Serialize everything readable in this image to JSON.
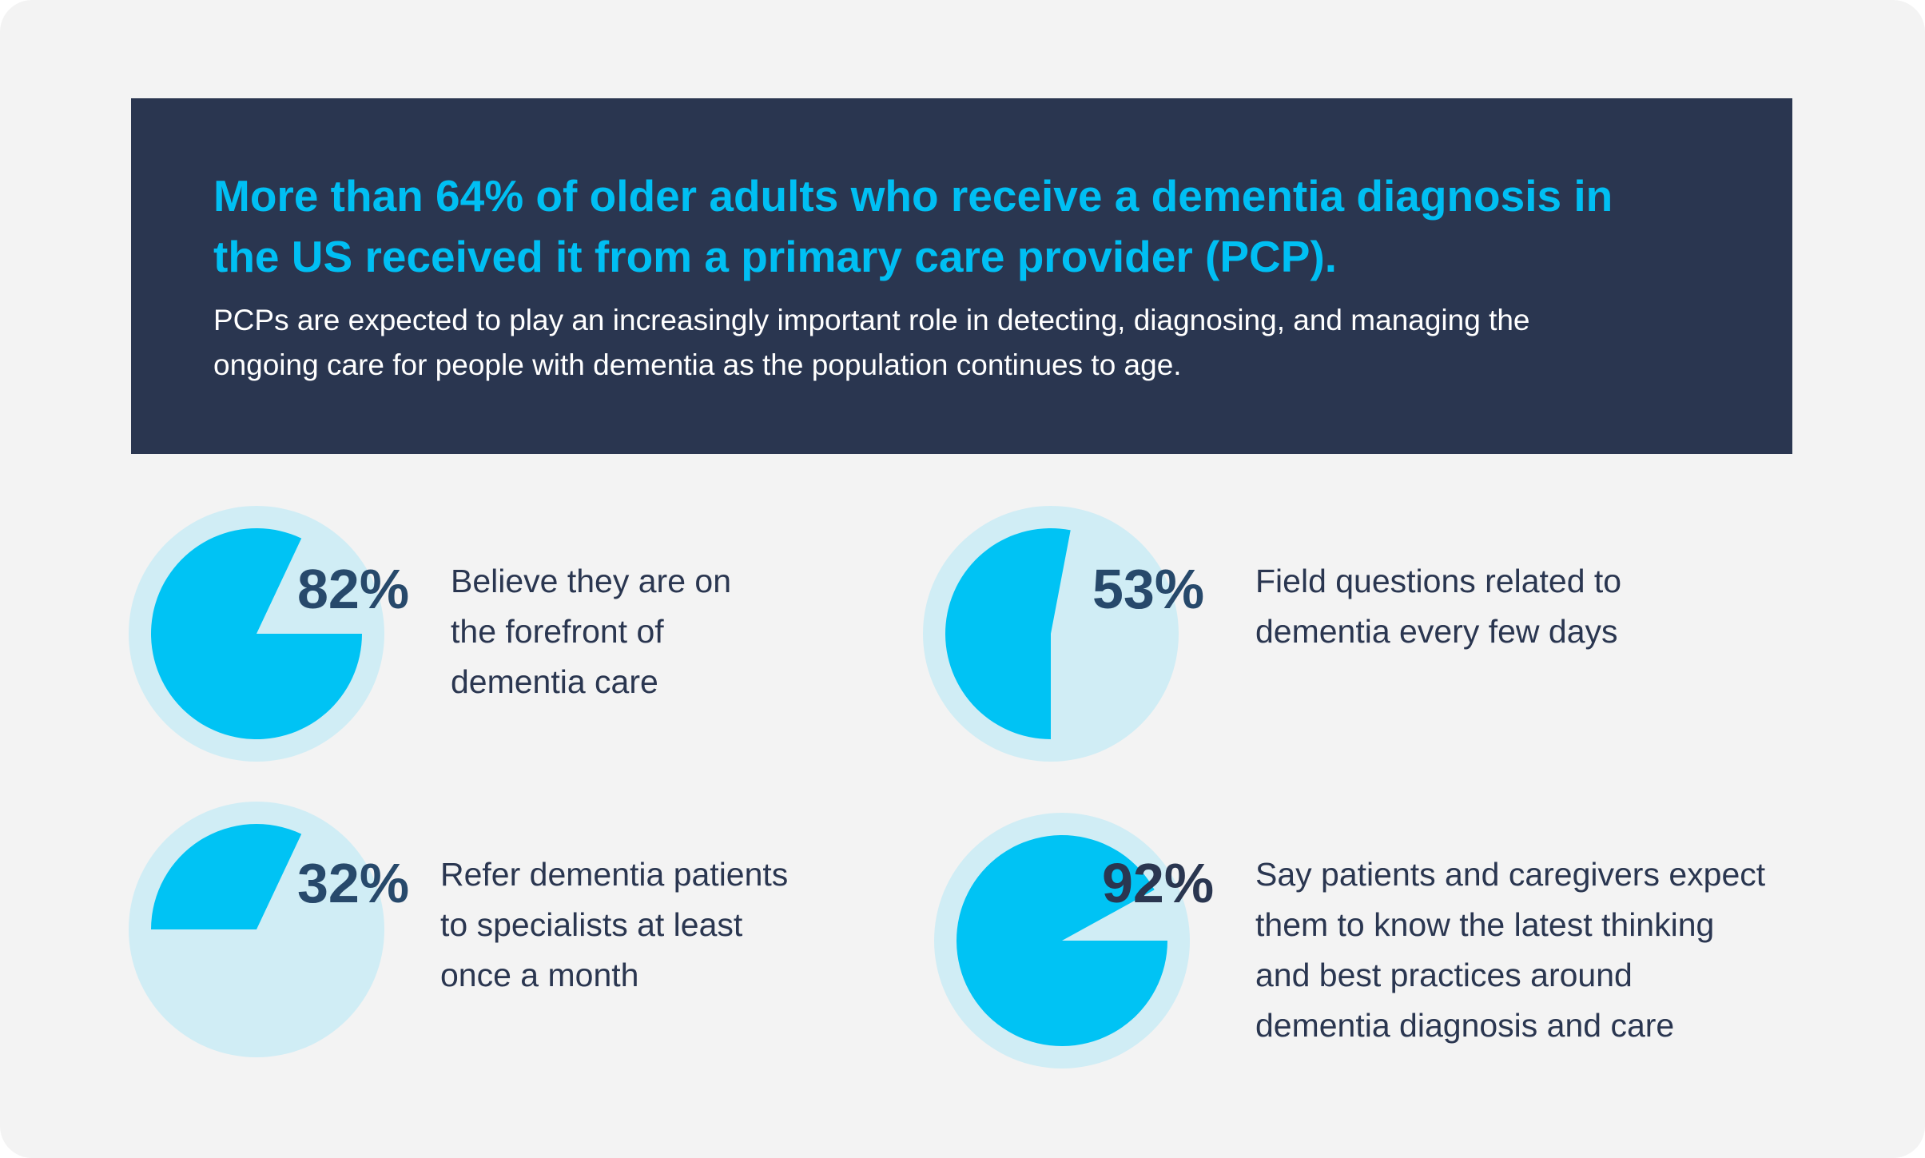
{
  "header": {
    "title_lines": [
      "More than 64% of older adults who receive a dementia diagnosis in",
      "the US received it from a primary care provider (PCP)."
    ],
    "subtitle_lines": [
      "PCPs are expected to play an increasingly important role in detecting, diagnosing, and managing the",
      "ongoing care for people with dementia as the population continues to age."
    ]
  },
  "colors": {
    "banner": "#2a3650",
    "accent": "#00bff3",
    "pie_background": "#d0edf5",
    "pie_fill": "#00c3f4",
    "text": "#2a3650"
  },
  "stats": [
    {
      "value": "82%",
      "percent": 82,
      "lines": [
        "Believe they are on",
        "the forefront of",
        "dementia care"
      ]
    },
    {
      "value": "53%",
      "percent": 53,
      "lines": [
        "Field questions related to",
        "dementia every few days"
      ]
    },
    {
      "value": "32%",
      "percent": 32,
      "lines": [
        "Refer dementia patients",
        "to specialists at least",
        "once a month"
      ]
    },
    {
      "value": "92%",
      "percent": 92,
      "lines": [
        "Say patients and caregivers expect",
        "them to know the latest thinking",
        "and best practices around",
        "dementia diagnosis and care"
      ]
    }
  ]
}
